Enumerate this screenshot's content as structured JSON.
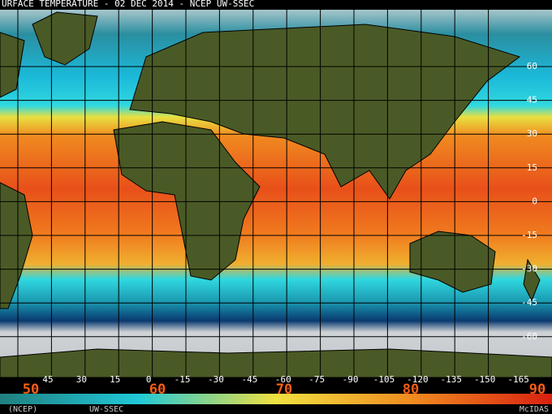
{
  "header": {
    "title": "URFACE TEMPERATURE - 02 DEC 2014 - NCEP UW-SSEC"
  },
  "lat_labels": [
    "60",
    "45",
    "30",
    "15",
    "0",
    "-15",
    "-30",
    "-45",
    "-60"
  ],
  "lon_labels": [
    "45",
    "30",
    "15",
    "0",
    "-15",
    "-30",
    "-45",
    "-60",
    "-75",
    "-90",
    "-105",
    "-120",
    "-135",
    "-150",
    "-165"
  ],
  "colorbar": {
    "labels": [
      "50",
      "60",
      "70",
      "80",
      "90"
    ]
  },
  "footer": {
    "left": "(NCEP)",
    "center": "UW-SSEC",
    "right": "McIDAS"
  }
}
